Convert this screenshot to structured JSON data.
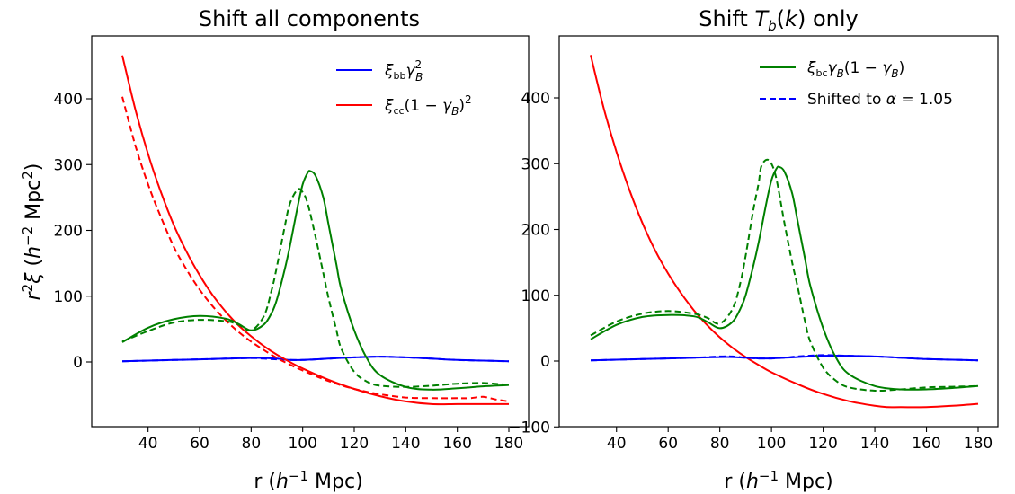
{
  "chart_data": [
    {
      "type": "line",
      "title": "Shift all components",
      "xlabel": "r (h⁻¹ Mpc)",
      "ylabel": "r²ξ (h⁻² Mpc²)",
      "xlim": [
        20,
        190
      ],
      "ylim": [
        -85,
        480
      ],
      "xticks": [
        40,
        60,
        80,
        100,
        120,
        140,
        160,
        180
      ],
      "yticks": [
        0,
        100,
        200,
        300,
        400
      ],
      "legend_position": "top-right",
      "series": [
        {
          "name": "ξ_bb γ_B²",
          "color": "#0000ff",
          "style": "solid",
          "x": [
            30,
            40,
            50,
            60,
            70,
            80,
            85,
            90,
            95,
            100,
            105,
            110,
            120,
            130,
            140,
            150,
            160,
            170,
            180
          ],
          "y": [
            1,
            2,
            3,
            4,
            5,
            6,
            6,
            5,
            3,
            3,
            4,
            5,
            7,
            8,
            7,
            5,
            3,
            2,
            1
          ]
        },
        {
          "color": "#0000ff",
          "style": "dashed",
          "x": [
            30,
            40,
            50,
            60,
            70,
            80,
            85,
            90,
            95,
            100,
            105,
            110,
            120,
            130,
            140,
            150,
            160,
            170,
            180
          ],
          "y": [
            1,
            2,
            3,
            4,
            5,
            6,
            5,
            4,
            3,
            3,
            4,
            5,
            7,
            8,
            7,
            5,
            3,
            2,
            1
          ]
        },
        {
          "name": "ξ_cc (1 − γ_B)²",
          "color": "#ff0000",
          "style": "solid",
          "x": [
            30,
            35,
            40,
            45,
            50,
            55,
            60,
            65,
            70,
            75,
            80,
            85,
            90,
            95,
            100,
            110,
            120,
            130,
            140,
            150,
            160,
            170,
            180
          ],
          "y": [
            466,
            385,
            316,
            258,
            208,
            167,
            132,
            102,
            77,
            56,
            39,
            24,
            11,
            0,
            -10,
            -27,
            -41,
            -52,
            -60,
            -64,
            -64,
            -64,
            -64
          ]
        },
        {
          "color": "#ff0000",
          "style": "dashed",
          "x": [
            30,
            35,
            40,
            45,
            50,
            55,
            60,
            65,
            70,
            75,
            80,
            85,
            90,
            95,
            100,
            110,
            120,
            130,
            140,
            150,
            160,
            165,
            170,
            175,
            180
          ],
          "y": [
            403,
            330,
            270,
            220,
            175,
            140,
            110,
            85,
            64,
            46,
            31,
            18,
            6,
            -4,
            -13,
            -29,
            -41,
            -49,
            -54,
            -55,
            -55,
            -55,
            -53,
            -57,
            -60
          ]
        },
        {
          "color": "#008000",
          "style": "solid",
          "x": [
            30,
            40,
            50,
            60,
            70,
            75,
            80,
            85,
            88,
            90,
            93,
            95,
            98,
            100,
            102,
            103,
            105,
            108,
            110,
            113,
            115,
            120,
            125,
            130,
            140,
            150,
            160,
            170,
            180
          ],
          "y": [
            30,
            52,
            65,
            70,
            66,
            58,
            48,
            57,
            75,
            95,
            140,
            175,
            235,
            270,
            288,
            290,
            283,
            250,
            210,
            150,
            110,
            48,
            5,
            -20,
            -38,
            -42,
            -40,
            -37,
            -35
          ]
        },
        {
          "color": "#008000",
          "style": "dashed",
          "x": [
            30,
            40,
            50,
            60,
            70,
            75,
            80,
            85,
            88,
            90,
            93,
            95,
            98,
            100,
            102,
            105,
            108,
            110,
            113,
            115,
            120,
            125,
            130,
            140,
            150,
            160,
            170,
            180
          ],
          "y": [
            31,
            47,
            60,
            64,
            62,
            57,
            48,
            70,
            110,
            145,
            205,
            240,
            262,
            258,
            240,
            190,
            135,
            98,
            50,
            20,
            -15,
            -30,
            -36,
            -38,
            -36,
            -33,
            -32,
            -35
          ]
        }
      ]
    },
    {
      "type": "line",
      "title": "Shift T_b(k) only",
      "xlabel": "r (h⁻¹ Mpc)",
      "ylabel": "",
      "xlim": [
        20,
        190
      ],
      "ylim": [
        -100,
        480
      ],
      "xticks": [
        40,
        60,
        80,
        100,
        120,
        140,
        160,
        180
      ],
      "yticks": [
        -100,
        0,
        100,
        200,
        300,
        400
      ],
      "legend_position": "top-right",
      "series": [
        {
          "color": "#ff0000",
          "style": "solid",
          "x": [
            30,
            35,
            40,
            45,
            50,
            55,
            60,
            65,
            70,
            75,
            80,
            85,
            90,
            95,
            100,
            110,
            120,
            130,
            140,
            145,
            150,
            160,
            170,
            180
          ],
          "y": [
            465,
            385,
            318,
            260,
            210,
            168,
            133,
            103,
            77,
            55,
            36,
            20,
            6,
            -6,
            -17,
            -35,
            -50,
            -61,
            -68,
            -70,
            -70,
            -70,
            -68,
            -65
          ]
        },
        {
          "color": "#0000ff",
          "style": "solid",
          "x": [
            30,
            40,
            50,
            60,
            70,
            80,
            85,
            90,
            95,
            100,
            105,
            110,
            120,
            130,
            140,
            150,
            160,
            170,
            180
          ],
          "y": [
            1,
            2,
            3,
            4,
            5,
            6,
            6,
            5,
            4,
            4,
            5,
            6,
            8,
            8,
            7,
            5,
            3,
            2,
            1
          ]
        },
        {
          "name": "Shifted to α = 1.05",
          "color": "#0000ff",
          "style": "dashed",
          "x": [
            30,
            40,
            50,
            60,
            70,
            80,
            85,
            90,
            95,
            100,
            105,
            110,
            120,
            130,
            140,
            150,
            160,
            170,
            180
          ],
          "y": [
            1,
            2,
            3,
            4,
            5,
            7,
            7,
            5,
            4,
            4,
            5,
            7,
            9,
            8,
            7,
            5,
            3,
            2,
            1
          ]
        },
        {
          "name": "ξ_bc γ_B(1 − γ_B)",
          "color": "#008000",
          "style": "solid",
          "x": [
            30,
            40,
            50,
            60,
            70,
            75,
            80,
            85,
            88,
            90,
            93,
            95,
            98,
            100,
            102,
            103,
            105,
            108,
            110,
            113,
            115,
            120,
            125,
            130,
            140,
            150,
            160,
            170,
            180
          ],
          "y": [
            33,
            55,
            67,
            70,
            68,
            60,
            50,
            60,
            80,
            100,
            145,
            180,
            240,
            275,
            293,
            295,
            288,
            255,
            215,
            155,
            115,
            50,
            5,
            -20,
            -38,
            -43,
            -43,
            -41,
            -38
          ]
        },
        {
          "color": "#008000",
          "style": "dashed",
          "x": [
            30,
            40,
            50,
            60,
            70,
            75,
            80,
            85,
            88,
            90,
            93,
            95,
            96,
            98,
            100,
            102,
            105,
            108,
            110,
            113,
            115,
            120,
            125,
            130,
            140,
            150,
            160,
            170,
            180
          ],
          "y": [
            39,
            60,
            72,
            76,
            72,
            66,
            57,
            80,
            120,
            160,
            230,
            270,
            295,
            306,
            300,
            275,
            210,
            150,
            115,
            60,
            30,
            -10,
            -30,
            -40,
            -45,
            -43,
            -40,
            -39,
            -38
          ]
        }
      ]
    }
  ],
  "legends": {
    "left": [
      {
        "label": "ξ_bbγ_B²",
        "color": "#0000ff",
        "style": "solid"
      },
      {
        "label": "ξ_cc(1 − γ_B)²",
        "color": "#ff0000",
        "style": "solid"
      }
    ],
    "right": [
      {
        "label": "ξ_bcγ_B(1 − γ_B)",
        "color": "#008000",
        "style": "solid"
      },
      {
        "label": "Shifted to α = 1.05",
        "color": "#0000ff",
        "style": "dashed"
      }
    ]
  }
}
